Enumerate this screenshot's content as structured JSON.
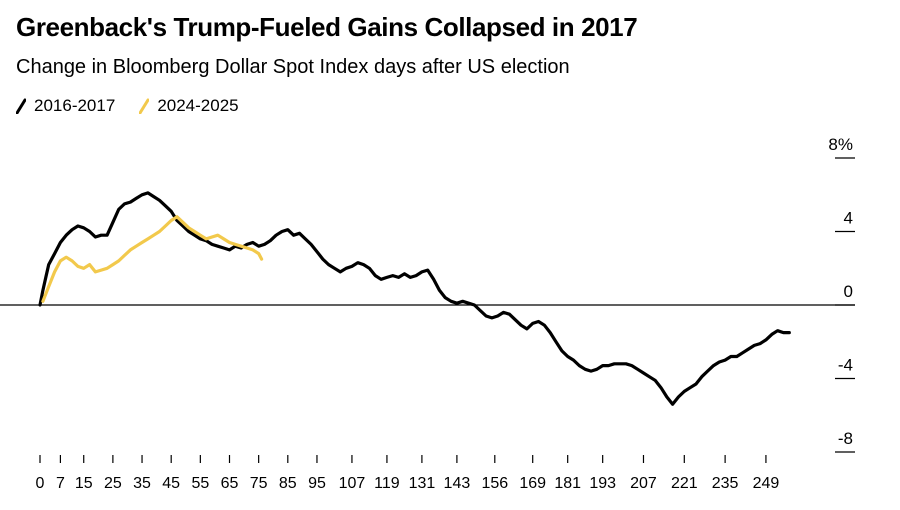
{
  "chart_data": {
    "type": "line",
    "title": "Greenback's Trump-Fueled Gains Collapsed in 2017",
    "subtitle": "Change in Bloomberg Dollar Spot Index days after US election",
    "xlabel": "",
    "ylabel": "",
    "xlim": [
      0,
      260
    ],
    "ylim": [
      -8,
      8
    ],
    "x_ticks": [
      0,
      7,
      15,
      25,
      35,
      45,
      55,
      65,
      75,
      85,
      95,
      107,
      119,
      131,
      143,
      156,
      169,
      181,
      193,
      207,
      221,
      235,
      249
    ],
    "y_ticks": [
      {
        "value": 8,
        "label": "8%"
      },
      {
        "value": 4,
        "label": "4"
      },
      {
        "value": 0,
        "label": "0"
      },
      {
        "value": -4,
        "label": "-4"
      },
      {
        "value": -8,
        "label": "-8"
      }
    ],
    "legend_position": "top-left",
    "series": [
      {
        "name": "2016-2017",
        "color": "#000000",
        "points": [
          [
            0,
            0
          ],
          [
            1,
            0.8
          ],
          [
            2,
            1.5
          ],
          [
            3,
            2.2
          ],
          [
            5,
            2.8
          ],
          [
            7,
            3.4
          ],
          [
            9,
            3.8
          ],
          [
            11,
            4.1
          ],
          [
            13,
            4.3
          ],
          [
            15,
            4.2
          ],
          [
            17,
            4.0
          ],
          [
            19,
            3.7
          ],
          [
            21,
            3.8
          ],
          [
            23,
            3.8
          ],
          [
            25,
            4.5
          ],
          [
            27,
            5.2
          ],
          [
            29,
            5.5
          ],
          [
            31,
            5.6
          ],
          [
            33,
            5.8
          ],
          [
            35,
            6.0
          ],
          [
            37,
            6.1
          ],
          [
            39,
            5.9
          ],
          [
            41,
            5.7
          ],
          [
            43,
            5.4
          ],
          [
            45,
            5.1
          ],
          [
            47,
            4.6
          ],
          [
            49,
            4.3
          ],
          [
            51,
            4.0
          ],
          [
            53,
            3.8
          ],
          [
            55,
            3.6
          ],
          [
            57,
            3.5
          ],
          [
            59,
            3.3
          ],
          [
            61,
            3.2
          ],
          [
            63,
            3.1
          ],
          [
            65,
            3.0
          ],
          [
            67,
            3.2
          ],
          [
            69,
            3.1
          ],
          [
            71,
            3.3
          ],
          [
            73,
            3.4
          ],
          [
            75,
            3.2
          ],
          [
            77,
            3.3
          ],
          [
            79,
            3.5
          ],
          [
            81,
            3.8
          ],
          [
            83,
            4.0
          ],
          [
            85,
            4.1
          ],
          [
            87,
            3.8
          ],
          [
            89,
            3.9
          ],
          [
            91,
            3.6
          ],
          [
            93,
            3.3
          ],
          [
            95,
            2.9
          ],
          [
            97,
            2.5
          ],
          [
            99,
            2.2
          ],
          [
            101,
            2.0
          ],
          [
            103,
            1.8
          ],
          [
            105,
            2.0
          ],
          [
            107,
            2.1
          ],
          [
            109,
            2.3
          ],
          [
            111,
            2.2
          ],
          [
            113,
            2.0
          ],
          [
            115,
            1.6
          ],
          [
            117,
            1.4
          ],
          [
            119,
            1.5
          ],
          [
            121,
            1.6
          ],
          [
            123,
            1.5
          ],
          [
            125,
            1.7
          ],
          [
            127,
            1.5
          ],
          [
            129,
            1.6
          ],
          [
            131,
            1.8
          ],
          [
            133,
            1.9
          ],
          [
            135,
            1.4
          ],
          [
            137,
            0.8
          ],
          [
            139,
            0.4
          ],
          [
            141,
            0.2
          ],
          [
            143,
            0.1
          ],
          [
            145,
            0.2
          ],
          [
            147,
            0.1
          ],
          [
            149,
            0.0
          ],
          [
            151,
            -0.3
          ],
          [
            153,
            -0.6
          ],
          [
            155,
            -0.7
          ],
          [
            157,
            -0.6
          ],
          [
            159,
            -0.4
          ],
          [
            161,
            -0.5
          ],
          [
            163,
            -0.8
          ],
          [
            165,
            -1.1
          ],
          [
            167,
            -1.3
          ],
          [
            169,
            -1.0
          ],
          [
            171,
            -0.9
          ],
          [
            173,
            -1.1
          ],
          [
            175,
            -1.5
          ],
          [
            177,
            -2.0
          ],
          [
            179,
            -2.5
          ],
          [
            181,
            -2.8
          ],
          [
            183,
            -3.0
          ],
          [
            185,
            -3.3
          ],
          [
            187,
            -3.5
          ],
          [
            189,
            -3.6
          ],
          [
            191,
            -3.5
          ],
          [
            193,
            -3.3
          ],
          [
            195,
            -3.3
          ],
          [
            197,
            -3.2
          ],
          [
            199,
            -3.2
          ],
          [
            201,
            -3.2
          ],
          [
            203,
            -3.3
          ],
          [
            205,
            -3.5
          ],
          [
            207,
            -3.7
          ],
          [
            209,
            -3.9
          ],
          [
            211,
            -4.1
          ],
          [
            213,
            -4.5
          ],
          [
            215,
            -5.0
          ],
          [
            217,
            -5.4
          ],
          [
            219,
            -5.0
          ],
          [
            221,
            -4.7
          ],
          [
            223,
            -4.5
          ],
          [
            225,
            -4.3
          ],
          [
            227,
            -3.9
          ],
          [
            229,
            -3.6
          ],
          [
            231,
            -3.3
          ],
          [
            233,
            -3.1
          ],
          [
            235,
            -3.0
          ],
          [
            237,
            -2.8
          ],
          [
            239,
            -2.8
          ],
          [
            241,
            -2.6
          ],
          [
            243,
            -2.4
          ],
          [
            245,
            -2.2
          ],
          [
            247,
            -2.1
          ],
          [
            249,
            -1.9
          ],
          [
            251,
            -1.6
          ],
          [
            253,
            -1.4
          ],
          [
            255,
            -1.5
          ],
          [
            257,
            -1.5
          ]
        ]
      },
      {
        "name": "2024-2025",
        "color": "#F2C94C",
        "points": [
          [
            1,
            0.2
          ],
          [
            3,
            1.0
          ],
          [
            5,
            1.8
          ],
          [
            7,
            2.4
          ],
          [
            9,
            2.6
          ],
          [
            11,
            2.4
          ],
          [
            13,
            2.1
          ],
          [
            15,
            2.0
          ],
          [
            17,
            2.2
          ],
          [
            19,
            1.8
          ],
          [
            21,
            1.9
          ],
          [
            23,
            2.0
          ],
          [
            25,
            2.2
          ],
          [
            27,
            2.4
          ],
          [
            29,
            2.7
          ],
          [
            31,
            3.0
          ],
          [
            33,
            3.2
          ],
          [
            35,
            3.4
          ],
          [
            37,
            3.6
          ],
          [
            39,
            3.8
          ],
          [
            41,
            4.0
          ],
          [
            43,
            4.3
          ],
          [
            45,
            4.6
          ],
          [
            47,
            4.8
          ],
          [
            49,
            4.5
          ],
          [
            51,
            4.2
          ],
          [
            53,
            4.0
          ],
          [
            55,
            3.8
          ],
          [
            57,
            3.6
          ],
          [
            59,
            3.7
          ],
          [
            61,
            3.8
          ],
          [
            63,
            3.6
          ],
          [
            65,
            3.4
          ],
          [
            67,
            3.3
          ],
          [
            69,
            3.2
          ],
          [
            71,
            3.1
          ],
          [
            73,
            3.0
          ],
          [
            75,
            2.8
          ],
          [
            76,
            2.5
          ]
        ]
      }
    ]
  }
}
